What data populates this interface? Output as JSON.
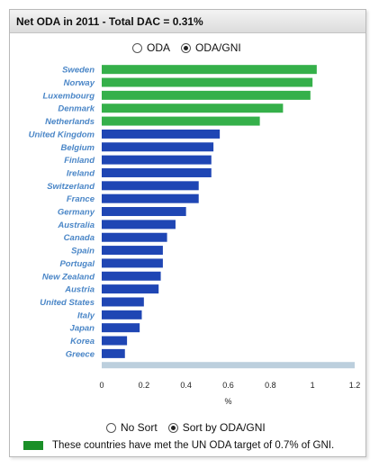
{
  "header": {
    "title": "Net ODA in 2011 - Total DAC = 0.31%"
  },
  "measure_options": [
    {
      "label": "ODA",
      "selected": false
    },
    {
      "label": "ODA/GNI",
      "selected": true
    }
  ],
  "sort_options": [
    {
      "label": "No Sort",
      "selected": false
    },
    {
      "label": "Sort by ODA/GNI",
      "selected": true
    }
  ],
  "legend": {
    "text": "These countries have met the UN ODA target of 0.7% of GNI.",
    "color": "#1a8f27"
  },
  "chart_data": {
    "type": "bar",
    "orientation": "horizontal",
    "title": "",
    "xlabel": "%",
    "ylabel": "",
    "xlim": [
      0,
      1.2
    ],
    "xticks": [
      "0",
      "0.2",
      "0.4",
      "0.6",
      "0.8",
      "1",
      "1.2"
    ],
    "colors": {
      "met_target": "#35b04a",
      "below_target": "#1f46b4",
      "total_dac": "#bccfdd"
    },
    "categories": [
      "Sweden",
      "Norway",
      "Luxembourg",
      "Denmark",
      "Netherlands",
      "United Kingdom",
      "Belgium",
      "Finland",
      "Ireland",
      "Switzerland",
      "France",
      "Germany",
      "Australia",
      "Canada",
      "Spain",
      "Portugal",
      "New Zealand",
      "Austria",
      "United States",
      "Italy",
      "Japan",
      "Korea",
      "Greece",
      ""
    ],
    "values": [
      1.02,
      1.0,
      0.99,
      0.86,
      0.75,
      0.56,
      0.53,
      0.52,
      0.52,
      0.46,
      0.46,
      0.4,
      0.35,
      0.31,
      0.29,
      0.29,
      0.28,
      0.27,
      0.2,
      0.19,
      0.18,
      0.12,
      0.11,
      1.2
    ],
    "met_target": [
      true,
      true,
      true,
      true,
      true,
      false,
      false,
      false,
      false,
      false,
      false,
      false,
      false,
      false,
      false,
      false,
      false,
      false,
      false,
      false,
      false,
      false,
      false,
      false
    ]
  }
}
